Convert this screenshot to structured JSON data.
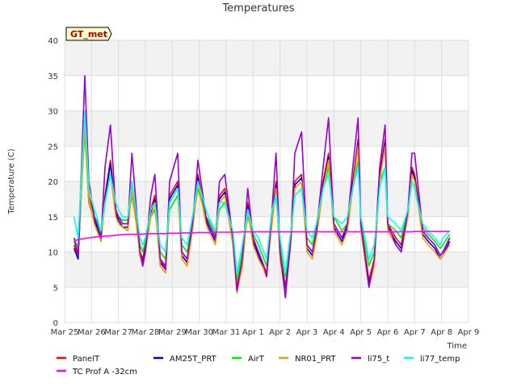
{
  "chart_data": {
    "type": "line",
    "title": "Temperatures",
    "xlabel": "Time",
    "ylabel": "Temperature (C)",
    "badge": "GT_met",
    "ylim": [
      0,
      40
    ],
    "yticks": [
      0,
      5,
      10,
      15,
      20,
      25,
      30,
      35,
      40
    ],
    "xlim": [
      0,
      15
    ],
    "xtick_labels": [
      "Mar 25",
      "Mar 26",
      "Mar 27",
      "Mar 28",
      "Mar 29",
      "Mar 30",
      "Mar 31",
      "Apr 1",
      "Apr 2",
      "Apr 3",
      "Apr 4",
      "Apr 5",
      "Apr 6",
      "Apr 7",
      "Apr 8",
      "Apr 9"
    ],
    "grid": true,
    "legend_position": "bottom",
    "x": [
      0.35,
      0.5,
      0.75,
      0.9,
      1.1,
      1.2,
      1.35,
      1.5,
      1.7,
      1.9,
      2.0,
      2.15,
      2.35,
      2.5,
      2.8,
      2.9,
      3.0,
      3.2,
      3.35,
      3.55,
      3.75,
      3.9,
      4.2,
      4.35,
      4.55,
      4.75,
      4.95,
      5.25,
      5.35,
      5.6,
      5.75,
      5.95,
      6.25,
      6.4,
      6.6,
      6.8,
      7.0,
      7.2,
      7.4,
      7.5,
      7.7,
      7.85,
      8.0,
      8.2,
      8.4,
      8.55,
      8.8,
      9.0,
      9.2,
      9.35,
      9.6,
      9.8,
      10.0,
      10.3,
      10.5,
      10.7,
      10.9,
      11.0,
      11.3,
      11.5,
      11.7,
      11.9,
      12.0,
      12.3,
      12.5,
      12.75,
      12.9,
      13.0,
      13.3,
      13.5,
      13.75,
      13.95,
      14.05,
      14.3
    ],
    "series": [
      {
        "name": "PanelT",
        "color": "#ff0000",
        "values": [
          11,
          9.5,
          30,
          18,
          15,
          14,
          12,
          18,
          23,
          16,
          15,
          14,
          14,
          20,
          10,
          9,
          11,
          16,
          18,
          9,
          8,
          18,
          20,
          10,
          9,
          14,
          21,
          15,
          14,
          12,
          18,
          19,
          12,
          5,
          9,
          17,
          12,
          10,
          8,
          7,
          15,
          20,
          10,
          5,
          12,
          20,
          21,
          11,
          10,
          13,
          20,
          24,
          14,
          12,
          14,
          20,
          26,
          14,
          6,
          9,
          21,
          26,
          14,
          12,
          11,
          16,
          22,
          21,
          13,
          12,
          11,
          9.5,
          10,
          12
        ]
      },
      {
        "name": "AM25T_PRT",
        "color": "#0000cc",
        "values": [
          10.5,
          9,
          29,
          17,
          14.5,
          13.5,
          11.5,
          17.5,
          22.5,
          15.5,
          14.5,
          13.5,
          13.5,
          19.5,
          9.5,
          8.5,
          10.5,
          15.5,
          17.5,
          8.5,
          7.5,
          17.5,
          19.5,
          9.5,
          8.5,
          13.5,
          20.5,
          14.5,
          13.5,
          11.5,
          17.5,
          18.5,
          11.5,
          4.5,
          8.5,
          16.5,
          11.5,
          9.5,
          7.5,
          6.5,
          14.5,
          19.5,
          9.5,
          4.5,
          11.5,
          19.5,
          20.5,
          10.5,
          9.5,
          12.5,
          19.5,
          23.5,
          13.5,
          11.5,
          13.5,
          19.5,
          25.5,
          13.5,
          5.5,
          8.5,
          20.5,
          25.5,
          13.5,
          11.5,
          10.5,
          15.5,
          21.5,
          20.5,
          12.5,
          11.5,
          10.5,
          9,
          9.5,
          11.5
        ]
      },
      {
        "name": "AirT",
        "color": "#00ee00",
        "values": [
          12,
          10.5,
          27,
          17,
          15,
          14.5,
          12.5,
          17,
          21,
          16,
          15,
          14.5,
          14.5,
          18,
          11,
          10,
          11.5,
          15,
          16,
          10,
          9,
          16,
          18,
          11,
          10,
          14,
          19,
          15,
          14.5,
          12.5,
          16,
          17,
          12.5,
          6,
          10,
          15,
          12.5,
          11,
          9,
          8,
          15,
          18,
          11,
          6.5,
          12.5,
          18,
          19,
          12,
          11,
          13.5,
          19,
          22,
          15,
          13,
          14,
          19,
          23,
          14.5,
          8,
          10,
          20,
          22,
          14,
          13,
          12,
          16,
          20,
          19,
          13.5,
          12.5,
          11.5,
          10.5,
          11,
          12.5
        ]
      },
      {
        "name": "NR01_PRT",
        "color": "#ff9900",
        "values": [
          11.5,
          10,
          28,
          17.5,
          14,
          13,
          11.5,
          17,
          21,
          15,
          14,
          13.5,
          13,
          19,
          9.5,
          8,
          10,
          15,
          17,
          8,
          7,
          17,
          19,
          9,
          8,
          13,
          20,
          14,
          13,
          11,
          17,
          18,
          11,
          4.2,
          8,
          16,
          11,
          9,
          7.5,
          6.5,
          14,
          19,
          9,
          4,
          11,
          19,
          20,
          10,
          9,
          12,
          19,
          23,
          13,
          11,
          13,
          19,
          25,
          13,
          5,
          8,
          20,
          25,
          13,
          11,
          10,
          15,
          21,
          20,
          12,
          11,
          10,
          9,
          9.5,
          11
        ]
      },
      {
        "name": "li75_t",
        "color": "#9900cc",
        "values": [
          12,
          9.5,
          35,
          20,
          15,
          14,
          12,
          22,
          28,
          16,
          15,
          14,
          14,
          24,
          10,
          8,
          10,
          18,
          21,
          9,
          7.5,
          20,
          24,
          10,
          9,
          14,
          23,
          15,
          14,
          12,
          20,
          21,
          12,
          4.5,
          9,
          19,
          12,
          10,
          8,
          6.5,
          16,
          24,
          10,
          3.5,
          12,
          24,
          27,
          11,
          10,
          13,
          22,
          29,
          14,
          12,
          14,
          22,
          29,
          14,
          5,
          9,
          22,
          28,
          14,
          11,
          10,
          16,
          24,
          24,
          13,
          12,
          11,
          9.5,
          10,
          12
        ]
      },
      {
        "name": "li77_temp",
        "color": "#00ffff",
        "values": [
          15,
          12,
          30,
          19,
          16,
          15,
          13,
          17,
          21,
          17,
          16,
          15,
          15,
          20,
          12,
          11,
          12,
          16,
          17,
          11,
          10,
          17,
          19,
          12,
          11,
          15,
          20,
          16,
          15,
          13,
          17,
          17,
          13,
          7,
          11,
          16,
          13,
          12,
          10,
          9,
          16,
          18,
          12,
          7,
          13,
          18,
          19,
          13,
          12,
          14,
          19,
          21,
          15,
          14,
          15,
          19,
          22,
          15,
          9,
          11,
          19,
          22,
          15,
          14,
          13,
          16,
          20,
          19,
          14,
          13,
          12,
          11,
          12,
          13
        ]
      },
      {
        "name": "TC Prof A -32cm",
        "color": "#ff00ff",
        "values": [
          11.5,
          11.8,
          11.9,
          12.0,
          12.1,
          12.15,
          12.2,
          12.25,
          12.3,
          12.35,
          12.4,
          12.45,
          12.5,
          12.5,
          12.5,
          12.55,
          12.55,
          12.6,
          12.6,
          12.6,
          12.6,
          12.65,
          12.65,
          12.7,
          12.7,
          12.7,
          12.75,
          12.75,
          12.75,
          12.8,
          12.8,
          12.8,
          12.8,
          12.8,
          12.85,
          12.85,
          12.85,
          12.85,
          12.85,
          12.85,
          12.85,
          12.85,
          12.85,
          12.85,
          12.85,
          12.85,
          12.85,
          12.85,
          12.85,
          12.85,
          12.85,
          12.85,
          12.85,
          12.85,
          12.85,
          12.85,
          12.85,
          12.85,
          12.85,
          12.85,
          12.85,
          12.85,
          12.85,
          12.85,
          12.85,
          12.85,
          12.85,
          12.9,
          12.9,
          12.9,
          12.9,
          12.9,
          12.9,
          12.9
        ]
      }
    ],
    "legend": [
      {
        "name": "PanelT",
        "color": "#ff0000"
      },
      {
        "name": "AM25T_PRT",
        "color": "#0000cc"
      },
      {
        "name": "AirT",
        "color": "#00ee00"
      },
      {
        "name": "NR01_PRT",
        "color": "#ff9900"
      },
      {
        "name": "li75_t",
        "color": "#9900cc"
      },
      {
        "name": "li77_temp",
        "color": "#00ffff"
      },
      {
        "name": "TC Prof A -32cm",
        "color": "#ff00ff"
      }
    ]
  }
}
